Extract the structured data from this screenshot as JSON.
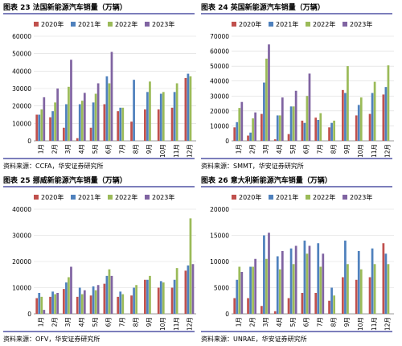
{
  "colors": {
    "series": [
      "#c0504d",
      "#4f81bd",
      "#9bbb59",
      "#8064a2"
    ],
    "title_rule": "#2e3192",
    "source_rule": "#2e3192",
    "gridline": "#d9d9d9",
    "axis": "#7f7f7f"
  },
  "chart_data": [
    {
      "type": "bar",
      "title": "图表 23 法国新能源汽车销量（万辆）",
      "source": "资料来源：CCFA，华安证券研究所",
      "categories": [
        "1月",
        "2月",
        "3月",
        "4月",
        "5月",
        "6月",
        "7月",
        "8月",
        "9月",
        "10月",
        "11月",
        "12月"
      ],
      "ylim": [
        0,
        60000
      ],
      "yticks": [
        0,
        10000,
        20000,
        30000,
        40000,
        50000,
        60000
      ],
      "legend_position": "top",
      "grid": true,
      "series": [
        {
          "name": "2020年",
          "values": [
            15000,
            13500,
            7500,
            1500,
            7500,
            21000,
            17000,
            11000,
            18000,
            18000,
            19000,
            36000
          ]
        },
        {
          "name": "2021年",
          "values": [
            15000,
            17000,
            21000,
            21000,
            22000,
            37000,
            19000,
            35000,
            28000,
            27000,
            28000,
            38500
          ]
        },
        {
          "name": "2022年",
          "values": [
            18000,
            22000,
            31000,
            23000,
            27000,
            33000,
            19000,
            0,
            34000,
            28000,
            33000,
            37000
          ]
        },
        {
          "name": "2023年",
          "values": [
            25000,
            30000,
            46500,
            27500,
            33000,
            51000,
            0,
            0,
            0,
            0,
            0,
            0
          ]
        }
      ]
    },
    {
      "type": "bar",
      "title": "图表 24 英国新能源汽车销量（万辆）",
      "source": "资料来源：SMMT，华安证券研究所",
      "categories": [
        "1月",
        "2月",
        "3月",
        "4月",
        "5月",
        "6月",
        "7月",
        "8月",
        "9月",
        "10月",
        "11月",
        "12月"
      ],
      "ylim": [
        0,
        70000
      ],
      "yticks": [
        0,
        10000,
        20000,
        30000,
        40000,
        50000,
        60000,
        70000
      ],
      "legend_position": "top",
      "grid": true,
      "series": [
        {
          "name": "2020年",
          "values": [
            9000,
            3500,
            18000,
            1000,
            4500,
            13500,
            15500,
            9000,
            34000,
            17000,
            18000,
            31000
          ]
        },
        {
          "name": "2021年",
          "values": [
            12500,
            5500,
            39000,
            17000,
            23000,
            12000,
            14000,
            12000,
            32000,
            24000,
            32000,
            36000
          ]
        },
        {
          "name": "2022年",
          "values": [
            22000,
            15000,
            55000,
            17000,
            23000,
            30000,
            18500,
            13500,
            50000,
            29000,
            39500,
            50500
          ]
        },
        {
          "name": "2023年",
          "values": [
            26000,
            19000,
            64500,
            29000,
            33500,
            45000,
            0,
            0,
            0,
            0,
            0,
            0
          ]
        }
      ]
    },
    {
      "type": "bar",
      "title": "图表 25 挪威新能源汽车销量（万辆）",
      "source": "资料来源：OFV，华安证券研究所",
      "categories": [
        "1月",
        "2月",
        "3月",
        "4月",
        "5月",
        "6月",
        "7月",
        "8月",
        "9月",
        "10月",
        "11月",
        "12月"
      ],
      "ylim": [
        0,
        40000
      ],
      "yticks": [
        0,
        10000,
        20000,
        30000,
        40000
      ],
      "legend_position": "top",
      "grid": true,
      "series": [
        {
          "name": "2020年",
          "values": [
            6000,
            6500,
            9500,
            6500,
            7000,
            11500,
            6500,
            7000,
            13000,
            10000,
            10000,
            16500
          ]
        },
        {
          "name": "2021年",
          "values": [
            8000,
            8500,
            12000,
            10000,
            10500,
            14500,
            8500,
            10000,
            13000,
            12500,
            13000,
            18500
          ]
        },
        {
          "name": "2022年",
          "values": [
            6500,
            7500,
            14000,
            7500,
            9000,
            17000,
            7500,
            11000,
            14500,
            12000,
            17500,
            36500
          ]
        },
        {
          "name": "2023年",
          "values": [
            1500,
            8000,
            18000,
            9000,
            11000,
            14500,
            0,
            0,
            0,
            0,
            0,
            19000
          ]
        }
      ]
    },
    {
      "type": "bar",
      "title": "图表 26 意大利新能源汽车销量（万辆）",
      "source": "资料来源：UNRAE，华安证券研究所",
      "categories": [
        "1月",
        "2月",
        "3月",
        "4月",
        "5月",
        "6月",
        "7月",
        "8月",
        "9月",
        "10月",
        "11月",
        "12月"
      ],
      "ylim": [
        0,
        20000
      ],
      "yticks": [
        0,
        5000,
        10000,
        15000,
        20000
      ],
      "legend_position": "top",
      "grid": true,
      "series": [
        {
          "name": "2020年",
          "values": [
            3000,
            3000,
            1500,
            500,
            3000,
            4000,
            4000,
            2500,
            7000,
            6500,
            7000,
            13500
          ]
        },
        {
          "name": "2021年",
          "values": [
            6500,
            9000,
            15000,
            11000,
            12500,
            14000,
            13500,
            5000,
            14000,
            12000,
            12500,
            11500
          ]
        },
        {
          "name": "2022年",
          "values": [
            9000,
            9000,
            10500,
            8500,
            9500,
            11500,
            9000,
            3500,
            9500,
            8500,
            9500,
            9500
          ]
        },
        {
          "name": "2023年",
          "values": [
            8000,
            10500,
            15500,
            12000,
            13000,
            13000,
            11500,
            0,
            0,
            0,
            0,
            0
          ]
        }
      ]
    }
  ]
}
